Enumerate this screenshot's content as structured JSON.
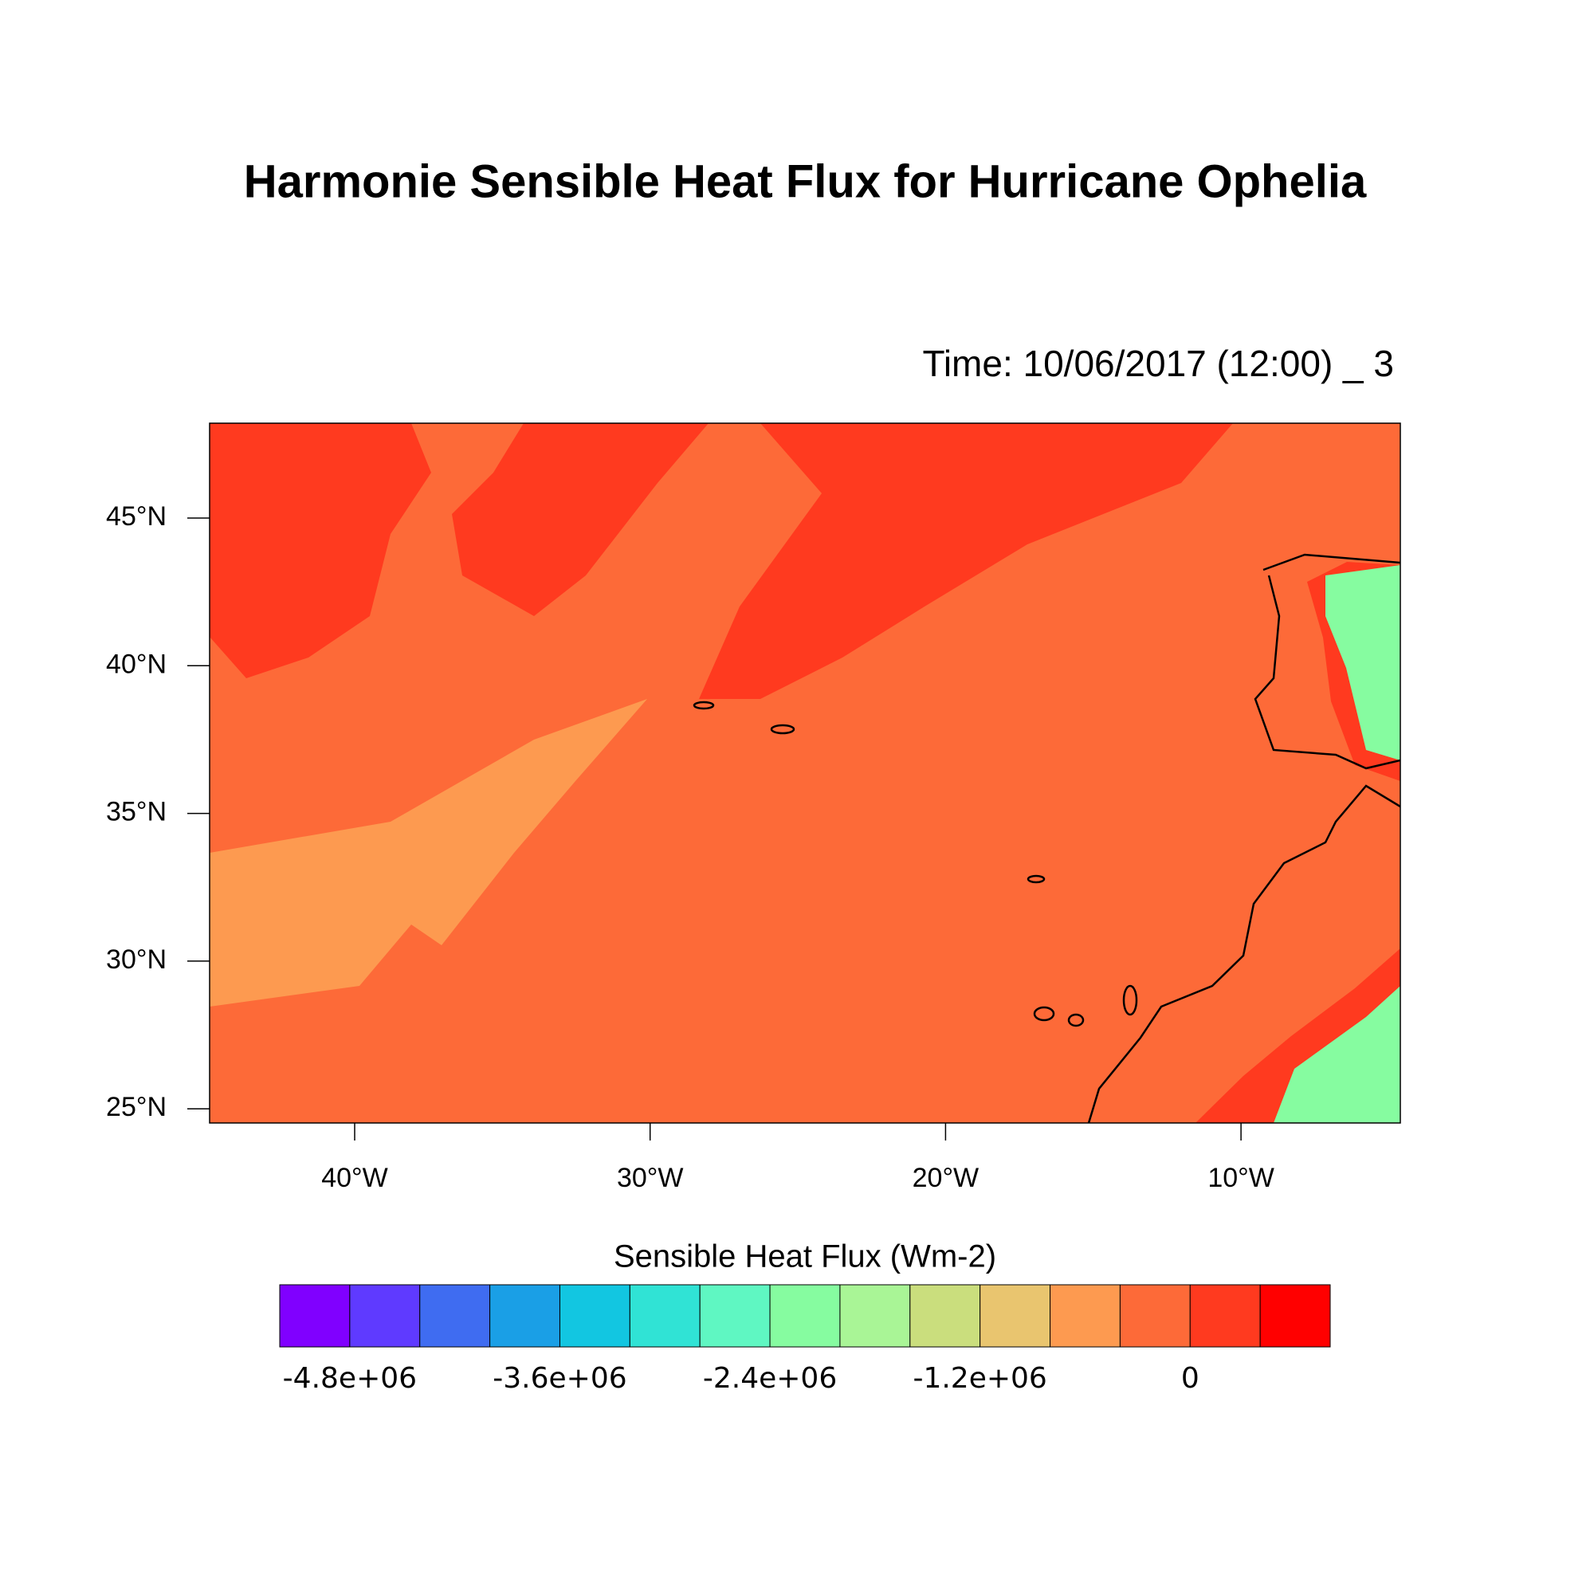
{
  "title": "Harmonie Sensible Heat Flux for Hurricane Ophelia",
  "time_label": "Time: 10/06/2017 (12:00) _ 3",
  "map": {
    "lat_tick_labels": [
      "45°N",
      "40°N",
      "35°N",
      "30°N",
      "25°N"
    ],
    "lon_tick_labels": [
      "40°W",
      "30°W",
      "20°W",
      "10°W"
    ]
  },
  "colorbar": {
    "title": "Sensible Heat Flux (Wm-2)",
    "colors": [
      "#8000ff",
      "#5f3aff",
      "#3f6cf1",
      "#1a9fe6",
      "#12c6e1",
      "#30e3d5",
      "#5ff7c2",
      "#86fca0",
      "#a9f596",
      "#cade7d",
      "#e9c56f",
      "#fd9a50",
      "#fd6a38",
      "#ff3a1f",
      "#ff0000"
    ],
    "tick_labels": [
      "-4.8e+06",
      "-3.6e+06",
      "-2.4e+06",
      "-1.2e+06",
      "0"
    ]
  }
}
